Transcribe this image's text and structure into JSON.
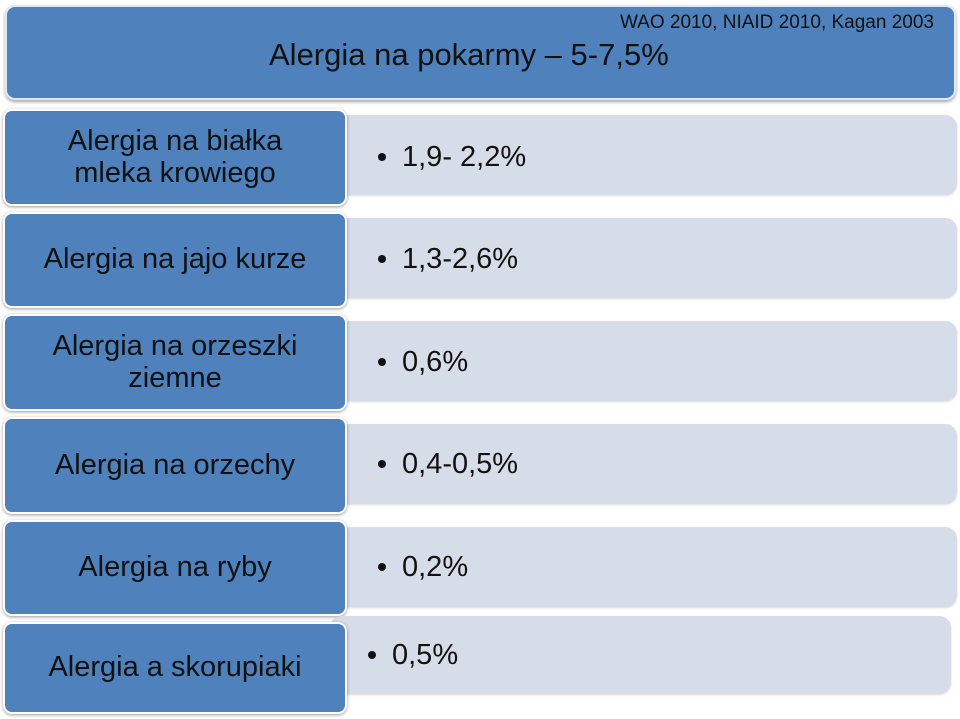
{
  "header": {
    "source": "WAO  2010, NIAID 2010, Kagan 2003",
    "title": "Alergia na pokarmy – 5-7,5%"
  },
  "rows": [
    {
      "label": "Alergia na białka mleka krowiego",
      "value": "1,9- 2,2%"
    },
    {
      "label": "Alergia na jajo kurze",
      "value": "1,3-2,6%"
    },
    {
      "label": "Alergia na orzeszki ziemne",
      "value": "0,6%"
    },
    {
      "label": "Alergia na orzechy",
      "value": "0,4-0,5%"
    },
    {
      "label": "Alergia na ryby",
      "value": "0,2%"
    },
    {
      "label": "Alergia a skorupiaki",
      "value": "0,5%"
    }
  ],
  "colors": {
    "label_fill": "#4f81bd",
    "value_fill": "#d6dce8",
    "text": "#111111"
  },
  "icons": {
    "bullet": "bullet-dot-icon"
  }
}
